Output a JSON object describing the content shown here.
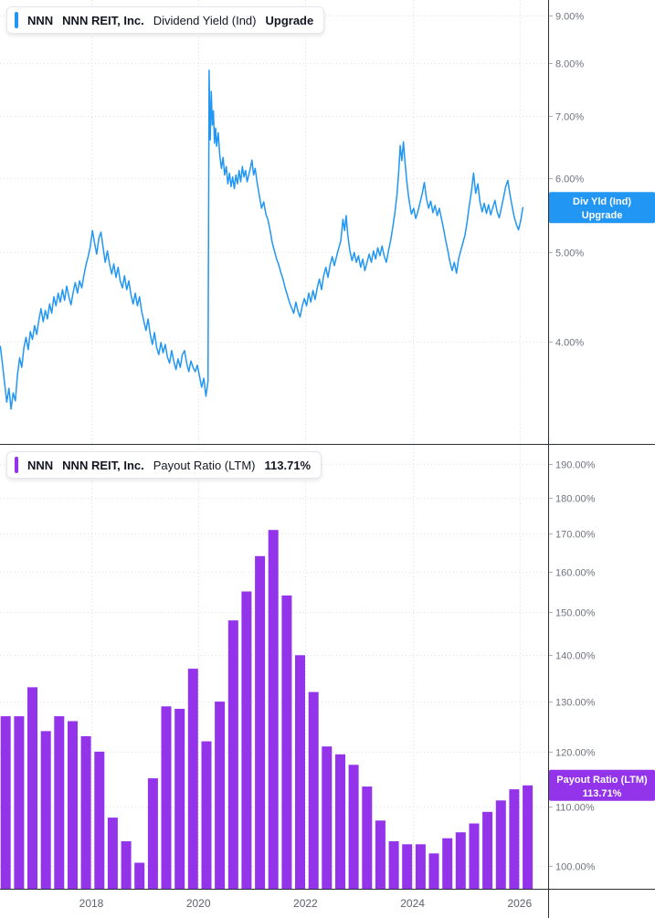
{
  "panels": [
    {
      "legend": {
        "symbol": "NNN",
        "company": "NNN REIT, Inc.",
        "metric": "Dividend Yield (Ind)",
        "value": "Upgrade"
      },
      "price_label": {
        "line1": "Div Yld (Ind)",
        "line2": "Upgrade"
      }
    },
    {
      "legend": {
        "symbol": "NNN",
        "company": "NNN REIT, Inc.",
        "metric": "Payout Ratio (LTM)",
        "value": "113.71%"
      },
      "price_label": {
        "line1": "Payout Ratio (LTM)",
        "line2": "113.71%"
      }
    }
  ],
  "time_axis": {
    "labels": [
      "2018",
      "2020",
      "2022",
      "2024",
      "2026"
    ],
    "years": [
      2018,
      2020,
      2022,
      2024,
      2026
    ]
  },
  "colors": {
    "line_blue": "#2196f3",
    "bar_purple": "#9333ea",
    "text": "#131722",
    "axis_text": "#70747e",
    "grid": "#dcdee4",
    "separator": "#2a2e39",
    "background": "#ffffff",
    "label_text": "#ffffff"
  },
  "chart_data": [
    {
      "type": "line",
      "title": "NNN NNN REIT, Inc. Dividend Yield (Ind)",
      "unit": "%",
      "color": "#2196f3",
      "scale": "log",
      "ylim": [
        3.1,
        9.35
      ],
      "yticks": [
        4,
        5,
        6,
        7,
        8,
        9
      ],
      "x_range": [
        2016.3,
        2026.1
      ],
      "last_value_label": [
        "Div Yld (Ind)",
        "Upgrade"
      ],
      "label_anchor_value": 5.58,
      "points": [
        [
          2016.3,
          3.95
        ],
        [
          2016.34,
          3.78
        ],
        [
          2016.38,
          3.6
        ],
        [
          2016.42,
          3.44
        ],
        [
          2016.46,
          3.56
        ],
        [
          2016.5,
          3.38
        ],
        [
          2016.54,
          3.52
        ],
        [
          2016.58,
          3.45
        ],
        [
          2016.62,
          3.68
        ],
        [
          2016.66,
          3.84
        ],
        [
          2016.7,
          3.75
        ],
        [
          2016.74,
          3.94
        ],
        [
          2016.78,
          4.04
        ],
        [
          2016.82,
          3.92
        ],
        [
          2016.86,
          4.1
        ],
        [
          2016.9,
          4.02
        ],
        [
          2016.94,
          4.16
        ],
        [
          2016.98,
          4.07
        ],
        [
          2017.02,
          4.22
        ],
        [
          2017.06,
          4.34
        ],
        [
          2017.1,
          4.2
        ],
        [
          2017.14,
          4.32
        ],
        [
          2017.18,
          4.23
        ],
        [
          2017.22,
          4.39
        ],
        [
          2017.26,
          4.29
        ],
        [
          2017.3,
          4.47
        ],
        [
          2017.34,
          4.37
        ],
        [
          2017.38,
          4.51
        ],
        [
          2017.42,
          4.41
        ],
        [
          2017.46,
          4.55
        ],
        [
          2017.5,
          4.43
        ],
        [
          2017.54,
          4.59
        ],
        [
          2017.58,
          4.47
        ],
        [
          2017.62,
          4.38
        ],
        [
          2017.66,
          4.52
        ],
        [
          2017.7,
          4.63
        ],
        [
          2017.74,
          4.51
        ],
        [
          2017.78,
          4.65
        ],
        [
          2017.82,
          4.57
        ],
        [
          2017.86,
          4.71
        ],
        [
          2017.9,
          4.84
        ],
        [
          2017.94,
          4.94
        ],
        [
          2017.98,
          5.06
        ],
        [
          2018.02,
          5.27
        ],
        [
          2018.06,
          5.11
        ],
        [
          2018.1,
          4.97
        ],
        [
          2018.14,
          5.17
        ],
        [
          2018.18,
          5.25
        ],
        [
          2018.22,
          5.05
        ],
        [
          2018.26,
          4.87
        ],
        [
          2018.3,
          5.01
        ],
        [
          2018.34,
          4.85
        ],
        [
          2018.38,
          4.73
        ],
        [
          2018.42,
          4.85
        ],
        [
          2018.46,
          4.69
        ],
        [
          2018.5,
          4.81
        ],
        [
          2018.54,
          4.65
        ],
        [
          2018.58,
          4.57
        ],
        [
          2018.62,
          4.71
        ],
        [
          2018.66,
          4.55
        ],
        [
          2018.7,
          4.65
        ],
        [
          2018.74,
          4.49
        ],
        [
          2018.78,
          4.39
        ],
        [
          2018.82,
          4.51
        ],
        [
          2018.86,
          4.37
        ],
        [
          2018.9,
          4.47
        ],
        [
          2018.94,
          4.31
        ],
        [
          2018.98,
          4.21
        ],
        [
          2019.02,
          4.11
        ],
        [
          2019.06,
          4.23
        ],
        [
          2019.1,
          4.07
        ],
        [
          2019.14,
          3.97
        ],
        [
          2019.18,
          4.09
        ],
        [
          2019.22,
          3.94
        ],
        [
          2019.26,
          3.87
        ],
        [
          2019.3,
          3.99
        ],
        [
          2019.34,
          3.89
        ],
        [
          2019.38,
          3.97
        ],
        [
          2019.42,
          3.85
        ],
        [
          2019.46,
          3.79
        ],
        [
          2019.5,
          3.91
        ],
        [
          2019.54,
          3.81
        ],
        [
          2019.58,
          3.73
        ],
        [
          2019.62,
          3.83
        ],
        [
          2019.66,
          3.75
        ],
        [
          2019.7,
          3.87
        ],
        [
          2019.74,
          3.91
        ],
        [
          2019.78,
          3.79
        ],
        [
          2019.82,
          3.71
        ],
        [
          2019.86,
          3.81
        ],
        [
          2019.9,
          3.75
        ],
        [
          2019.94,
          3.71
        ],
        [
          2019.98,
          3.77
        ],
        [
          2020.02,
          3.67
        ],
        [
          2020.06,
          3.57
        ],
        [
          2020.1,
          3.65
        ],
        [
          2020.14,
          3.49
        ],
        [
          2020.18,
          3.62
        ],
        [
          2020.2,
          7.85
        ],
        [
          2020.22,
          6.6
        ],
        [
          2020.24,
          7.45
        ],
        [
          2020.26,
          6.85
        ],
        [
          2020.28,
          7.1
        ],
        [
          2020.3,
          6.55
        ],
        [
          2020.32,
          6.8
        ],
        [
          2020.34,
          6.5
        ],
        [
          2020.37,
          6.72
        ],
        [
          2020.4,
          6.35
        ],
        [
          2020.43,
          6.15
        ],
        [
          2020.46,
          6.32
        ],
        [
          2020.49,
          6.05
        ],
        [
          2020.52,
          6.18
        ],
        [
          2020.55,
          5.92
        ],
        [
          2020.58,
          6.08
        ],
        [
          2020.61,
          5.88
        ],
        [
          2020.64,
          6.02
        ],
        [
          2020.67,
          5.85
        ],
        [
          2020.7,
          6.05
        ],
        [
          2020.73,
          5.92
        ],
        [
          2020.76,
          6.12
        ],
        [
          2020.79,
          5.95
        ],
        [
          2020.82,
          6.18
        ],
        [
          2020.85,
          6.02
        ],
        [
          2020.88,
          6.12
        ],
        [
          2020.91,
          5.95
        ],
        [
          2020.94,
          6.05
        ],
        [
          2020.97,
          6.15
        ],
        [
          2021.0,
          6.28
        ],
        [
          2021.03,
          6.05
        ],
        [
          2021.06,
          6.15
        ],
        [
          2021.1,
          5.92
        ],
        [
          2021.14,
          5.74
        ],
        [
          2021.18,
          5.57
        ],
        [
          2021.22,
          5.66
        ],
        [
          2021.26,
          5.49
        ],
        [
          2021.3,
          5.41
        ],
        [
          2021.34,
          5.27
        ],
        [
          2021.38,
          5.11
        ],
        [
          2021.42,
          5.01
        ],
        [
          2021.46,
          4.91
        ],
        [
          2021.5,
          4.84
        ],
        [
          2021.54,
          4.75
        ],
        [
          2021.58,
          4.67
        ],
        [
          2021.62,
          4.57
        ],
        [
          2021.66,
          4.49
        ],
        [
          2021.7,
          4.41
        ],
        [
          2021.74,
          4.35
        ],
        [
          2021.78,
          4.29
        ],
        [
          2021.82,
          4.41
        ],
        [
          2021.86,
          4.31
        ],
        [
          2021.9,
          4.25
        ],
        [
          2021.94,
          4.37
        ],
        [
          2021.98,
          4.45
        ],
        [
          2022.02,
          4.37
        ],
        [
          2022.06,
          4.51
        ],
        [
          2022.1,
          4.41
        ],
        [
          2022.14,
          4.54
        ],
        [
          2022.18,
          4.44
        ],
        [
          2022.22,
          4.57
        ],
        [
          2022.26,
          4.67
        ],
        [
          2022.3,
          4.55
        ],
        [
          2022.34,
          4.71
        ],
        [
          2022.38,
          4.81
        ],
        [
          2022.42,
          4.69
        ],
        [
          2022.46,
          4.84
        ],
        [
          2022.5,
          4.94
        ],
        [
          2022.54,
          4.83
        ],
        [
          2022.58,
          4.94
        ],
        [
          2022.62,
          5.04
        ],
        [
          2022.66,
          5.14
        ],
        [
          2022.7,
          5.42
        ],
        [
          2022.73,
          5.27
        ],
        [
          2022.76,
          5.47
        ],
        [
          2022.79,
          5.21
        ],
        [
          2022.83,
          5.01
        ],
        [
          2022.87,
          4.89
        ],
        [
          2022.91,
          4.99
        ],
        [
          2022.95,
          4.87
        ],
        [
          2022.99,
          4.95
        ],
        [
          2023.03,
          4.81
        ],
        [
          2023.07,
          4.91
        ],
        [
          2023.11,
          4.77
        ],
        [
          2023.15,
          4.87
        ],
        [
          2023.19,
          4.97
        ],
        [
          2023.23,
          4.87
        ],
        [
          2023.27,
          5.01
        ],
        [
          2023.31,
          4.91
        ],
        [
          2023.35,
          5.05
        ],
        [
          2023.39,
          4.95
        ],
        [
          2023.43,
          5.07
        ],
        [
          2023.47,
          4.95
        ],
        [
          2023.51,
          4.87
        ],
        [
          2023.55,
          5.01
        ],
        [
          2023.59,
          5.14
        ],
        [
          2023.63,
          5.31
        ],
        [
          2023.67,
          5.51
        ],
        [
          2023.71,
          5.77
        ],
        [
          2023.74,
          6.09
        ],
        [
          2023.77,
          6.51
        ],
        [
          2023.8,
          6.27
        ],
        [
          2023.83,
          6.57
        ],
        [
          2023.86,
          6.24
        ],
        [
          2023.89,
          5.97
        ],
        [
          2023.92,
          5.77
        ],
        [
          2023.95,
          5.61
        ],
        [
          2023.98,
          5.49
        ],
        [
          2024.02,
          5.57
        ],
        [
          2024.06,
          5.43
        ],
        [
          2024.1,
          5.53
        ],
        [
          2024.14,
          5.65
        ],
        [
          2024.18,
          5.77
        ],
        [
          2024.22,
          5.94
        ],
        [
          2024.26,
          5.71
        ],
        [
          2024.3,
          5.57
        ],
        [
          2024.34,
          5.67
        ],
        [
          2024.38,
          5.51
        ],
        [
          2024.42,
          5.61
        ],
        [
          2024.46,
          5.47
        ],
        [
          2024.5,
          5.57
        ],
        [
          2024.54,
          5.43
        ],
        [
          2024.58,
          5.29
        ],
        [
          2024.62,
          5.14
        ],
        [
          2024.66,
          5.01
        ],
        [
          2024.7,
          4.87
        ],
        [
          2024.74,
          4.77
        ],
        [
          2024.78,
          4.87
        ],
        [
          2024.82,
          4.74
        ],
        [
          2024.86,
          4.91
        ],
        [
          2024.9,
          5.01
        ],
        [
          2024.94,
          5.11
        ],
        [
          2024.98,
          5.21
        ],
        [
          2025.02,
          5.39
        ],
        [
          2025.06,
          5.61
        ],
        [
          2025.1,
          5.81
        ],
        [
          2025.14,
          6.08
        ],
        [
          2025.18,
          5.78
        ],
        [
          2025.22,
          5.92
        ],
        [
          2025.26,
          5.66
        ],
        [
          2025.3,
          5.52
        ],
        [
          2025.34,
          5.64
        ],
        [
          2025.38,
          5.5
        ],
        [
          2025.42,
          5.62
        ],
        [
          2025.46,
          5.48
        ],
        [
          2025.5,
          5.58
        ],
        [
          2025.54,
          5.68
        ],
        [
          2025.58,
          5.52
        ],
        [
          2025.62,
          5.44
        ],
        [
          2025.66,
          5.58
        ],
        [
          2025.7,
          5.72
        ],
        [
          2025.74,
          5.88
        ],
        [
          2025.78,
          5.97
        ],
        [
          2025.82,
          5.76
        ],
        [
          2025.86,
          5.6
        ],
        [
          2025.9,
          5.45
        ],
        [
          2025.94,
          5.35
        ],
        [
          2025.98,
          5.28
        ],
        [
          2026.02,
          5.4
        ],
        [
          2026.06,
          5.58
        ]
      ]
    },
    {
      "type": "bar",
      "title": "NNN NNN REIT, Inc. Payout Ratio (LTM)",
      "unit": "%",
      "color": "#9333ea",
      "scale": "log",
      "ylim": [
        96.4,
        195.9
      ],
      "yticks": [
        100,
        110,
        120,
        130,
        140,
        150,
        160,
        170,
        180,
        190
      ],
      "bar_start_year": 2016.4,
      "bar_interval_years": 0.25,
      "last_value": 113.71,
      "last_value_label": [
        "Payout Ratio (LTM)",
        "113.71%"
      ],
      "label_anchor_value": 113.71,
      "values": [
        127,
        127,
        133,
        124,
        127,
        126,
        123,
        120,
        108,
        104,
        100.5,
        115,
        129,
        128.5,
        137,
        122,
        130,
        148,
        155,
        164,
        171,
        154,
        140,
        132,
        121,
        119.5,
        117.5,
        113.5,
        107.5,
        104,
        103.5,
        103.5,
        102,
        104.5,
        105.5,
        107,
        109,
        111,
        113,
        113.71
      ]
    }
  ]
}
